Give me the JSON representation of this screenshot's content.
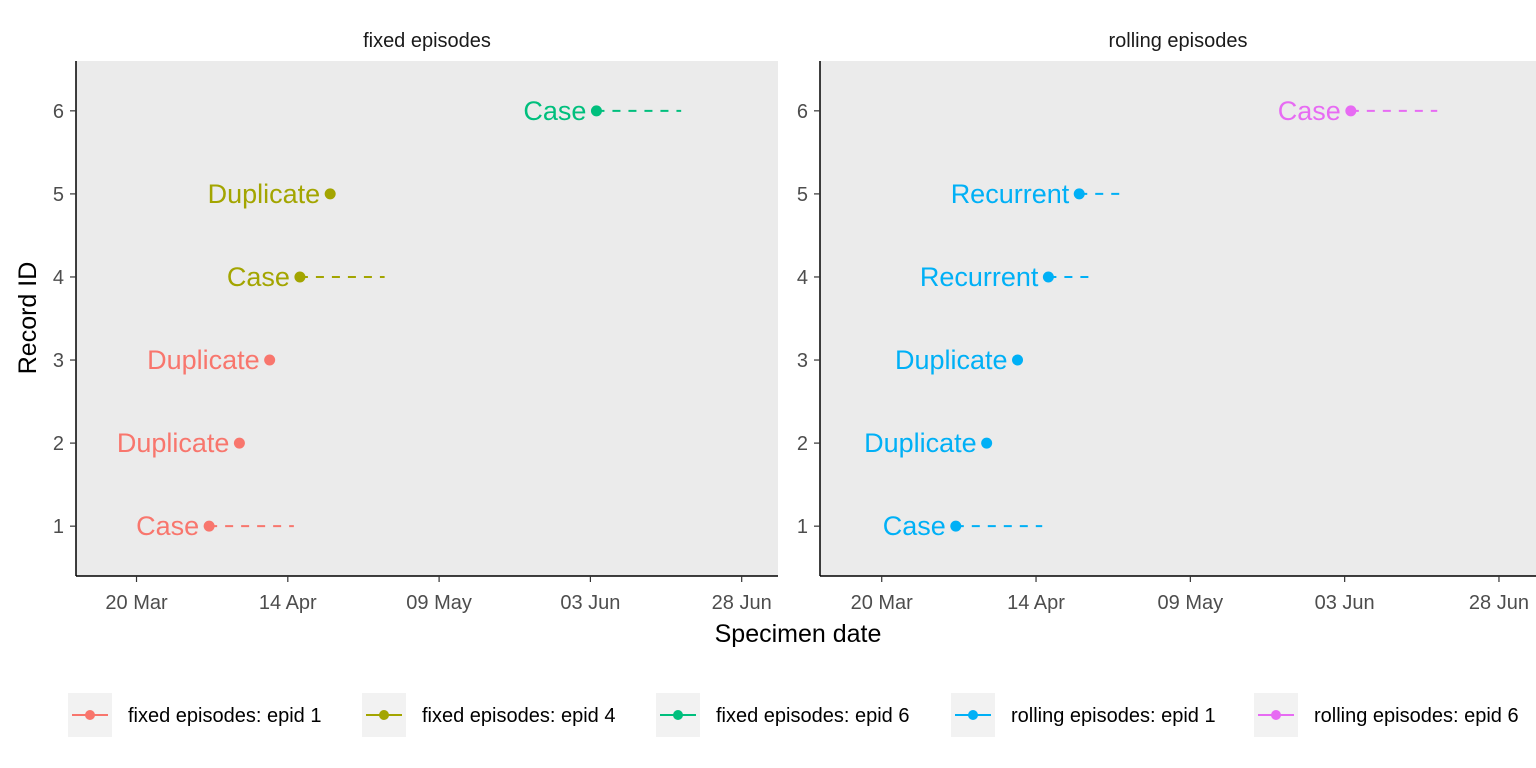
{
  "chart_data": {
    "type": "scatter",
    "xlabel": "Specimen date",
    "ylabel": "Record ID",
    "x_ticks": [
      "20 Mar",
      "14 Apr",
      "09 May",
      "03 Jun",
      "28 Jun"
    ],
    "x_tick_dates": [
      "2020-03-20",
      "2020-04-14",
      "2020-05-09",
      "2020-06-03",
      "2020-06-28"
    ],
    "xlim": [
      "2020-03-10",
      "2020-07-04"
    ],
    "y_ticks": [
      1,
      2,
      3,
      4,
      5,
      6
    ],
    "ylim": [
      0.4,
      6.6
    ],
    "grid": false,
    "legend_position": "bottom",
    "panels": [
      {
        "title": "fixed episodes",
        "points": [
          {
            "record_id": 1,
            "date": "2020-04-01",
            "label": "Case",
            "group": "fixed episodes: epid 1",
            "window_end": "2020-04-15"
          },
          {
            "record_id": 2,
            "date": "2020-04-06",
            "label": "Duplicate",
            "group": "fixed episodes: epid 1"
          },
          {
            "record_id": 3,
            "date": "2020-04-11",
            "label": "Duplicate",
            "group": "fixed episodes: epid 1"
          },
          {
            "record_id": 4,
            "date": "2020-04-16",
            "label": "Case",
            "group": "fixed episodes: epid 4",
            "window_end": "2020-04-30"
          },
          {
            "record_id": 5,
            "date": "2020-04-21",
            "label": "Duplicate",
            "group": "fixed episodes: epid 4"
          },
          {
            "record_id": 6,
            "date": "2020-06-04",
            "label": "Case",
            "group": "fixed episodes: epid 6",
            "window_end": "2020-06-18"
          }
        ]
      },
      {
        "title": "rolling episodes",
        "points": [
          {
            "record_id": 1,
            "date": "2020-04-01",
            "label": "Case",
            "group": "rolling episodes: epid 1",
            "window_end": "2020-04-15"
          },
          {
            "record_id": 2,
            "date": "2020-04-06",
            "label": "Duplicate",
            "group": "rolling episodes: epid 1"
          },
          {
            "record_id": 3,
            "date": "2020-04-11",
            "label": "Duplicate",
            "group": "rolling episodes: epid 1"
          },
          {
            "record_id": 4,
            "date": "2020-04-16",
            "label": "Recurrent",
            "group": "rolling episodes: epid 1",
            "window_end": "2020-04-23"
          },
          {
            "record_id": 5,
            "date": "2020-04-21",
            "label": "Recurrent",
            "group": "rolling episodes: epid 1",
            "window_end": "2020-04-28"
          },
          {
            "record_id": 6,
            "date": "2020-06-04",
            "label": "Case",
            "group": "rolling episodes: epid 6",
            "window_end": "2020-06-18"
          }
        ]
      }
    ],
    "legend": [
      {
        "name": "fixed episodes: epid 1",
        "color": "#F8766D"
      },
      {
        "name": "fixed episodes: epid 4",
        "color": "#A3A500"
      },
      {
        "name": "fixed episodes: epid 6",
        "color": "#00BF7D"
      },
      {
        "name": "rolling episodes: epid 1",
        "color": "#00B0F6"
      },
      {
        "name": "rolling episodes: epid 6",
        "color": "#E76BF3"
      }
    ],
    "panel_background": "#EBEBEB"
  }
}
